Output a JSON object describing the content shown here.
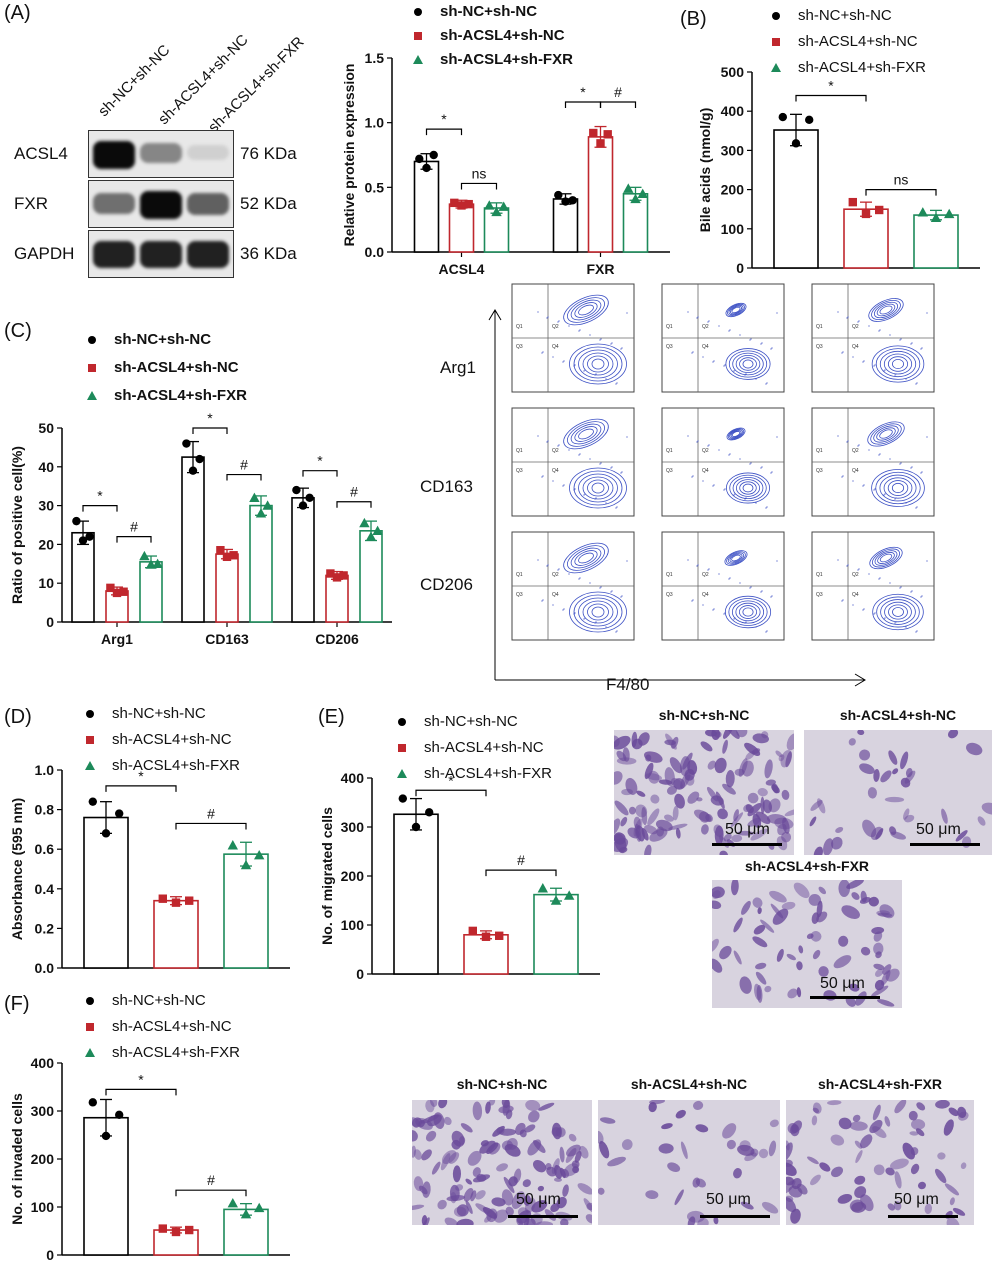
{
  "colors": {
    "black": "#000000",
    "red": "#c0272d",
    "green": "#1d8a5a",
    "flow_contour": "#3b4fc4",
    "stain": "#6a4a9a"
  },
  "panels": {
    "A": {
      "label": "(A)",
      "lanes": [
        "sh-NC+sh-NC",
        "sh-ACSL4+sh-NC",
        "sh-ACSL4+sh-FXR"
      ],
      "blots": [
        {
          "protein": "ACSL4",
          "size": "76 KDa",
          "intensity": [
            1.0,
            0.45,
            0.12
          ]
        },
        {
          "protein": "FXR",
          "size": "52 KDa",
          "intensity": [
            0.55,
            1.0,
            0.62
          ]
        },
        {
          "protein": "GAPDH",
          "size": "36 KDa",
          "intensity": [
            0.9,
            0.9,
            0.9
          ]
        }
      ]
    },
    "B": {
      "label": "(B)"
    },
    "C": {
      "label": "(C)",
      "flow_rows": [
        "Arg1",
        "CD163",
        "CD206"
      ],
      "flow_xaxis": "F4/80"
    },
    "D": {
      "label": "(D)"
    },
    "E": {
      "label": "(E)",
      "images": [
        {
          "title": "sh-NC+sh-NC",
          "scale": "50 μm",
          "density": "high"
        },
        {
          "title": "sh-ACSL4+sh-NC",
          "scale": "50 μm",
          "density": "low"
        },
        {
          "title": "sh-ACSL4+sh-FXR",
          "scale": "50 μm",
          "density": "medium"
        }
      ]
    },
    "F": {
      "label": "(F)",
      "images": [
        {
          "title": "sh-NC+sh-NC",
          "scale": "50 μm",
          "density": "high"
        },
        {
          "title": "sh-ACSL4+sh-NC",
          "scale": "50 μm",
          "density": "low"
        },
        {
          "title": "sh-ACSL4+sh-FXR",
          "scale": "50 μm",
          "density": "medium"
        }
      ]
    }
  },
  "chart_data": [
    {
      "id": "A",
      "type": "bar",
      "title": "",
      "ylabel": "Relative protein expression",
      "ylim": [
        0,
        1.5
      ],
      "yticks": [
        0.0,
        0.5,
        1.0,
        1.5
      ],
      "categories": [
        "ACSL4",
        "FXR"
      ],
      "legend_bold": true,
      "series": [
        {
          "name": "sh-NC+sh-NC",
          "values": [
            0.7,
            0.41
          ],
          "points": [
            [
              0.72,
              0.65,
              0.75
            ],
            [
              0.44,
              0.39,
              0.4
            ]
          ],
          "err": [
            0.06,
            0.04
          ]
        },
        {
          "name": "sh-ACSL4+sh-NC",
          "values": [
            0.37,
            0.89
          ],
          "points": [
            [
              0.38,
              0.36,
              0.37
            ],
            [
              0.92,
              0.84,
              0.91
            ]
          ],
          "err": [
            0.03,
            0.08
          ]
        },
        {
          "name": "sh-ACSL4+sh-FXR",
          "values": [
            0.34,
            0.45
          ],
          "points": [
            [
              0.36,
              0.31,
              0.35
            ],
            [
              0.49,
              0.41,
              0.45
            ]
          ],
          "err": [
            0.04,
            0.05
          ]
        }
      ],
      "brackets": [
        {
          "cat": 0,
          "from": 0,
          "to": 1,
          "y": 0.95,
          "text": "*"
        },
        {
          "cat": 0,
          "from": 1,
          "to": 2,
          "y": 0.53,
          "text": "ns"
        },
        {
          "cat": 1,
          "from": 0,
          "to": 1,
          "y": 1.16,
          "text": "*"
        },
        {
          "cat": 1,
          "from": 1,
          "to": 2,
          "y": 1.16,
          "text": "#"
        }
      ]
    },
    {
      "id": "B",
      "type": "bar",
      "title": "",
      "ylabel": "Bile acids (nmol/g)",
      "ylim": [
        0,
        500
      ],
      "yticks": [
        0,
        100,
        200,
        300,
        400,
        500
      ],
      "categories": [
        ""
      ],
      "legend_bold": false,
      "series": [
        {
          "name": "sh-NC+sh-NC",
          "values": [
            352
          ],
          "points": [
            [
              385,
              318,
              378
            ]
          ],
          "err": [
            40
          ]
        },
        {
          "name": "sh-ACSL4+sh-NC",
          "values": [
            150
          ],
          "points": [
            [
              168,
              138,
              148
            ]
          ],
          "err": [
            18
          ]
        },
        {
          "name": "sh-ACSL4+sh-FXR",
          "values": [
            135
          ],
          "points": [
            [
              142,
              128,
              138
            ]
          ],
          "err": [
            12
          ]
        }
      ],
      "brackets": [
        {
          "cat": 0,
          "from": 0,
          "to": 1,
          "y": 440,
          "text": "*"
        },
        {
          "cat": 0,
          "from": 1,
          "to": 2,
          "y": 200,
          "text": "ns"
        }
      ]
    },
    {
      "id": "C",
      "type": "bar",
      "title": "",
      "ylabel": "Ratio of positive cell(%)",
      "ylim": [
        0,
        50
      ],
      "yticks": [
        0,
        10,
        20,
        30,
        40,
        50
      ],
      "categories": [
        "Arg1",
        "CD163",
        "CD206"
      ],
      "legend_bold": true,
      "series": [
        {
          "name": "sh-NC+sh-NC",
          "values": [
            23,
            42.5,
            32
          ],
          "points": [
            [
              26,
              21,
              22
            ],
            [
              46,
              39,
              42
            ],
            [
              34,
              30,
              32
            ]
          ],
          "err": [
            3,
            4,
            2.5
          ]
        },
        {
          "name": "sh-ACSL4+sh-NC",
          "values": [
            8,
            17.5,
            12
          ],
          "points": [
            [
              8.8,
              7.5,
              7.8
            ],
            [
              18.5,
              16.8,
              17.2
            ],
            [
              12.5,
              11.5,
              12
            ]
          ],
          "err": [
            1,
            1.2,
            1
          ]
        },
        {
          "name": "sh-ACSL4+sh-FXR",
          "values": [
            15.5,
            30,
            23.5
          ],
          "points": [
            [
              17,
              14.8,
              15
            ],
            [
              32,
              28,
              30
            ],
            [
              25.5,
              22,
              23.5
            ]
          ],
          "err": [
            1.5,
            2.5,
            2.5
          ]
        }
      ],
      "brackets": [
        {
          "cat": 0,
          "from": 0,
          "to": 1,
          "y": 30,
          "text": "*"
        },
        {
          "cat": 0,
          "from": 1,
          "to": 2,
          "y": 22,
          "text": "#"
        },
        {
          "cat": 1,
          "from": 0,
          "to": 1,
          "y": 50,
          "text": "*"
        },
        {
          "cat": 1,
          "from": 1,
          "to": 2,
          "y": 38,
          "text": "#"
        },
        {
          "cat": 2,
          "from": 0,
          "to": 1,
          "y": 39,
          "text": "*"
        },
        {
          "cat": 2,
          "from": 1,
          "to": 2,
          "y": 31,
          "text": "#"
        }
      ]
    },
    {
      "id": "D",
      "type": "bar",
      "title": "",
      "ylabel": "Absorbance (595 nm)",
      "ylim": [
        0,
        1.0
      ],
      "yticks": [
        0.0,
        0.2,
        0.4,
        0.6,
        0.8,
        1.0
      ],
      "categories": [
        ""
      ],
      "legend_bold": false,
      "series": [
        {
          "name": "sh-NC+sh-NC",
          "values": [
            0.76
          ],
          "points": [
            [
              0.84,
              0.68,
              0.78
            ]
          ],
          "err": [
            0.08
          ]
        },
        {
          "name": "sh-ACSL4+sh-NC",
          "values": [
            0.34
          ],
          "points": [
            [
              0.35,
              0.33,
              0.34
            ]
          ],
          "err": [
            0.02
          ]
        },
        {
          "name": "sh-ACSL4+sh-FXR",
          "values": [
            0.575
          ],
          "points": [
            [
              0.62,
              0.52,
              0.57
            ]
          ],
          "err": [
            0.06
          ]
        }
      ],
      "brackets": [
        {
          "cat": 0,
          "from": 0,
          "to": 1,
          "y": 0.92,
          "text": "*"
        },
        {
          "cat": 0,
          "from": 1,
          "to": 2,
          "y": 0.73,
          "text": "#"
        }
      ]
    },
    {
      "id": "E",
      "type": "bar",
      "title": "",
      "ylabel": "No. of migrated cells",
      "ylim": [
        0,
        400
      ],
      "yticks": [
        0,
        100,
        200,
        300,
        400
      ],
      "categories": [
        ""
      ],
      "legend_bold": false,
      "series": [
        {
          "name": "sh-NC+sh-NC",
          "values": [
            326
          ],
          "points": [
            [
              358,
              300,
              330
            ]
          ],
          "err": [
            32
          ]
        },
        {
          "name": "sh-ACSL4+sh-NC",
          "values": [
            80
          ],
          "points": [
            [
              88,
              76,
              78
            ]
          ],
          "err": [
            8
          ]
        },
        {
          "name": "sh-ACSL4+sh-FXR",
          "values": [
            162
          ],
          "points": [
            [
              175,
              150,
              160
            ]
          ],
          "err": [
            13
          ]
        }
      ],
      "brackets": [
        {
          "cat": 0,
          "from": 0,
          "to": 1,
          "y": 375,
          "text": "*"
        },
        {
          "cat": 0,
          "from": 1,
          "to": 2,
          "y": 212,
          "text": "#"
        }
      ]
    },
    {
      "id": "F",
      "type": "bar",
      "title": "",
      "ylabel": "No. of invaded cells",
      "ylim": [
        0,
        400
      ],
      "yticks": [
        0,
        100,
        200,
        300,
        400
      ],
      "categories": [
        ""
      ],
      "legend_bold": false,
      "series": [
        {
          "name": "sh-NC+sh-NC",
          "values": [
            286
          ],
          "points": [
            [
              318,
              248,
              292
            ]
          ],
          "err": [
            38
          ]
        },
        {
          "name": "sh-ACSL4+sh-NC",
          "values": [
            52
          ],
          "points": [
            [
              55,
              48,
              52
            ]
          ],
          "err": [
            6
          ]
        },
        {
          "name": "sh-ACSL4+sh-FXR",
          "values": [
            95
          ],
          "points": [
            [
              108,
              85,
              98
            ]
          ],
          "err": [
            12
          ]
        }
      ],
      "brackets": [
        {
          "cat": 0,
          "from": 0,
          "to": 1,
          "y": 345,
          "text": "*"
        },
        {
          "cat": 0,
          "from": 1,
          "to": 2,
          "y": 135,
          "text": "#"
        }
      ]
    }
  ]
}
